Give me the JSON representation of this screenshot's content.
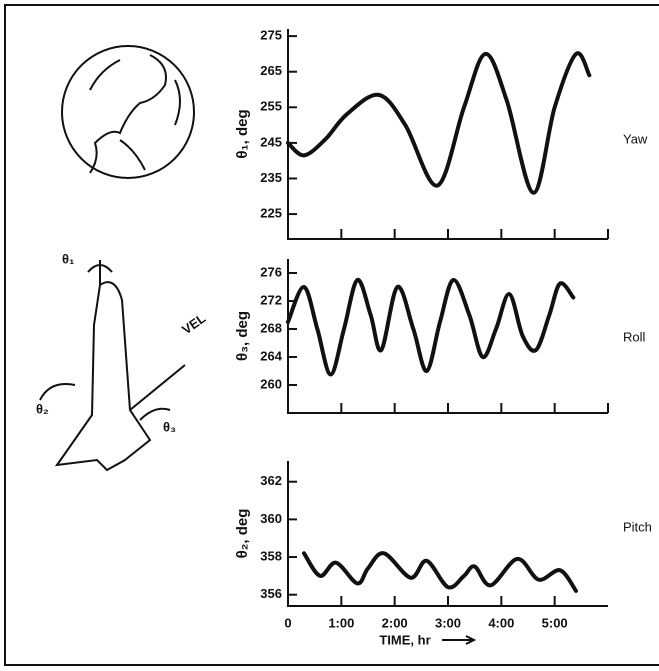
{
  "chart_data": [
    {
      "type": "line",
      "y_label": "θ₁, deg",
      "side_label": "Yaw",
      "x": [
        0,
        0.3,
        0.7,
        1.1,
        1.7,
        2.2,
        2.8,
        3.3,
        3.7,
        4.1,
        4.6,
        5.0,
        5.4,
        5.65
      ],
      "series": [
        {
          "color": "#111111",
          "values": [
            245,
            241.5,
            246,
            253,
            258.5,
            250,
            233,
            255,
            270,
            257,
            231,
            255,
            270,
            264
          ]
        }
      ],
      "xlim": [
        0,
        6
      ],
      "xticks": [
        1,
        2,
        3,
        4,
        5,
        6
      ],
      "ylim": [
        218,
        277
      ],
      "yticks": [
        225,
        235,
        245,
        255,
        265,
        275
      ]
    },
    {
      "type": "line",
      "y_label": "θ₃, deg",
      "side_label": "Roll",
      "x": [
        0,
        0.3,
        0.55,
        0.8,
        1.05,
        1.3,
        1.55,
        1.75,
        2.05,
        2.35,
        2.6,
        2.85,
        3.1,
        3.4,
        3.65,
        3.9,
        4.15,
        4.4,
        4.65,
        4.9,
        5.1,
        5.35
      ],
      "series": [
        {
          "color": "#111111",
          "values": [
            269,
            274,
            268,
            261.5,
            268,
            275,
            270,
            265,
            274,
            268,
            262,
            269,
            275,
            270,
            264,
            268,
            273,
            267,
            265,
            270,
            274.5,
            272.5
          ]
        }
      ],
      "xlim": [
        0,
        6
      ],
      "xticks": [
        1,
        2,
        3,
        4,
        5,
        6
      ],
      "ylim": [
        256,
        278
      ],
      "yticks": [
        260,
        264,
        268,
        272,
        276
      ]
    },
    {
      "type": "line",
      "y_label": "θ₂, deg",
      "side_label": "Pitch",
      "x_label": "TIME, hr",
      "x": [
        0.3,
        0.6,
        0.9,
        1.3,
        1.5,
        1.8,
        2.3,
        2.6,
        3.0,
        3.3,
        3.5,
        3.8,
        4.3,
        4.7,
        5.1,
        5.4
      ],
      "series": [
        {
          "color": "#111111",
          "values": [
            358.2,
            357.0,
            357.7,
            356.6,
            357.4,
            358.2,
            356.9,
            357.8,
            356.4,
            357.0,
            357.5,
            356.5,
            357.9,
            356.8,
            357.3,
            356.2
          ]
        }
      ],
      "xlim": [
        0,
        6
      ],
      "xticks": [
        0,
        {
          "value": 1,
          "label": "1:00"
        },
        {
          "value": 2,
          "label": "2:00"
        },
        {
          "value": 3,
          "label": "3:00"
        },
        {
          "value": 4,
          "label": "4:00"
        },
        {
          "value": 5,
          "label": "5:00"
        }
      ],
      "ylim": [
        355.4,
        363.1
      ],
      "yticks": [
        356,
        358,
        360,
        362
      ]
    }
  ],
  "illustration": {
    "labels": [
      "θ₁",
      "θ₂",
      "θ₃",
      "VEL"
    ]
  }
}
